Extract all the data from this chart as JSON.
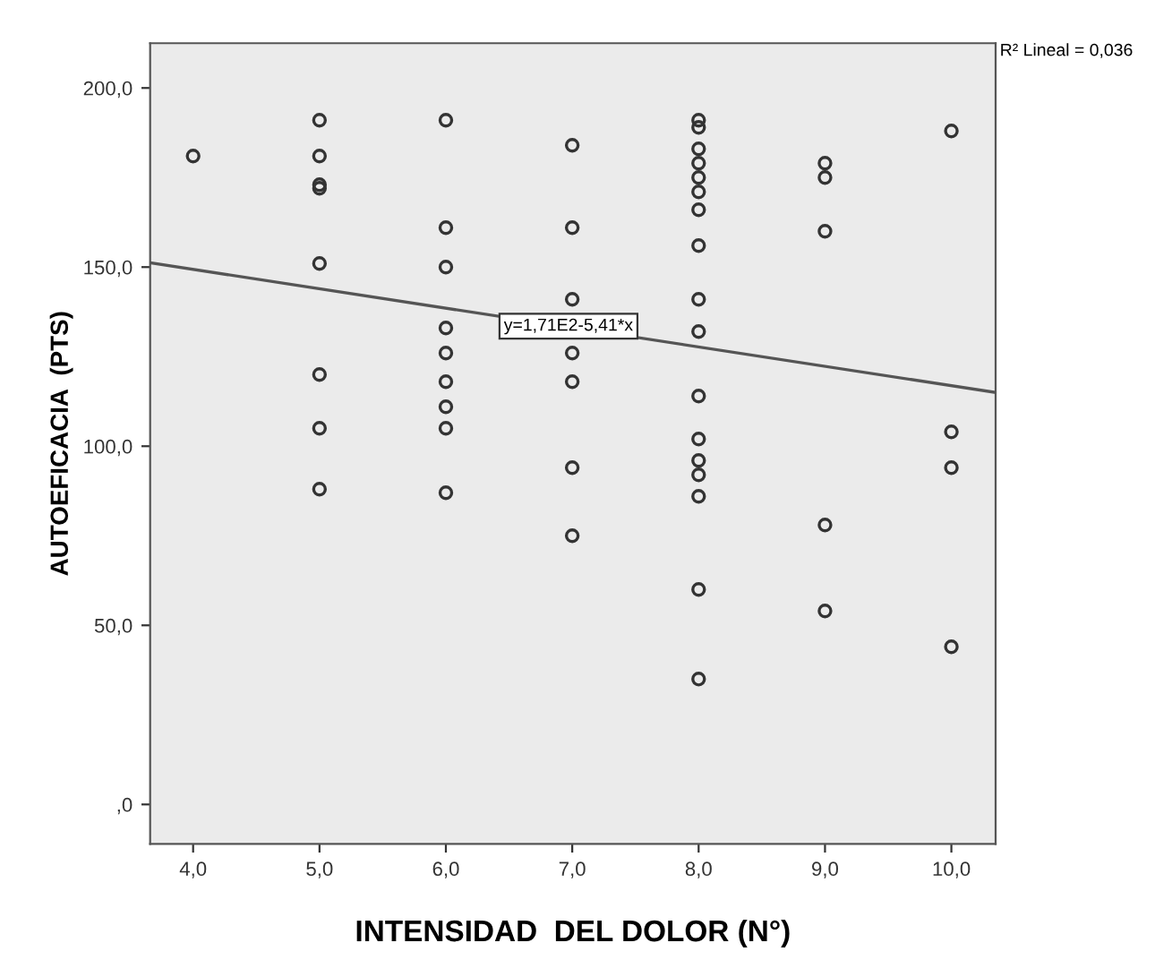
{
  "chart_data": {
    "type": "scatter",
    "xlabel": "INTENSIDAD  DEL DOLOR (N°)",
    "ylabel": "AUTOEFICACIA  (PTS)",
    "xlim": [
      3.66,
      10.35
    ],
    "ylim": [
      -11,
      212.5
    ],
    "xticks": [
      {
        "value": 4,
        "label": "4,0"
      },
      {
        "value": 5,
        "label": "5,0"
      },
      {
        "value": 6,
        "label": "6,0"
      },
      {
        "value": 7,
        "label": "7,0"
      },
      {
        "value": 8,
        "label": "8,0"
      },
      {
        "value": 9,
        "label": "9,0"
      },
      {
        "value": 10,
        "label": "10,0"
      }
    ],
    "yticks": [
      {
        "value": 0,
        "label": ",0"
      },
      {
        "value": 50,
        "label": "50,0"
      },
      {
        "value": 100,
        "label": "100,0"
      },
      {
        "value": 150,
        "label": "150,0"
      },
      {
        "value": 200,
        "label": "200,0"
      }
    ],
    "grid": false,
    "legend": false,
    "marker": "circle",
    "series": [
      {
        "color": "#333333",
        "x": [
          4,
          5,
          5,
          5,
          5,
          5,
          5,
          5,
          5,
          6,
          6,
          6,
          6,
          6,
          6,
          6,
          6,
          6,
          7,
          7,
          7,
          7,
          7,
          7,
          7,
          8,
          8,
          8,
          8,
          8,
          8,
          8,
          8,
          8,
          8,
          8,
          8,
          8,
          8,
          8,
          8,
          8,
          9,
          9,
          9,
          9,
          9,
          10,
          10,
          10,
          10
        ],
        "values": [
          181,
          191,
          181,
          173,
          172,
          151,
          120,
          105,
          88,
          191,
          161,
          150,
          133,
          126,
          118,
          111,
          105,
          87,
          184,
          161,
          141,
          126,
          118,
          94,
          75,
          191,
          189,
          183,
          179,
          175,
          171,
          166,
          156,
          141,
          132,
          114,
          102,
          96,
          92,
          86,
          60,
          35,
          179,
          175,
          160,
          78,
          54,
          188,
          104,
          94,
          44
        ]
      },
      {
        "type": "line",
        "color": "#555555",
        "x": [
          3.66,
          10.35
        ],
        "values": [
          151.2,
          115.0
        ],
        "line_style": "solid",
        "marker": "none"
      }
    ],
    "annotations": [
      "R² Lineal = 0,036",
      {
        "text": "y=1,71E2-5,41*x",
        "x": 6.97,
        "y": 133.5
      }
    ]
  }
}
